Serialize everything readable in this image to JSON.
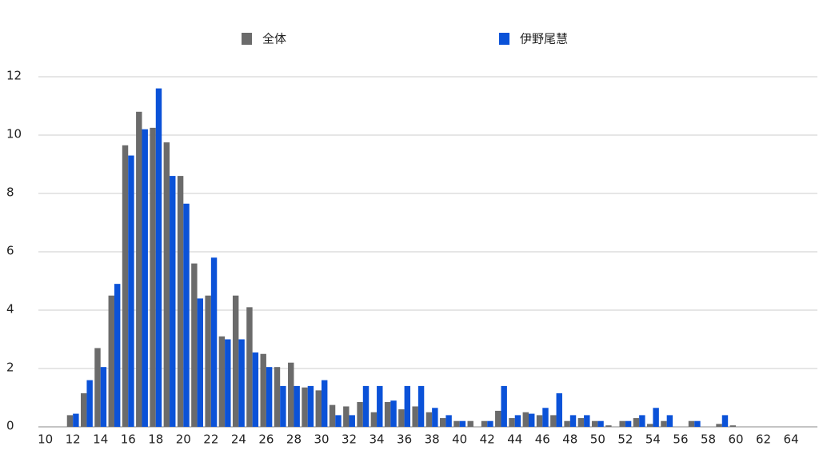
{
  "chart_data": {
    "type": "bar",
    "categories": [
      "10",
      null,
      "12",
      null,
      "14",
      null,
      "16",
      null,
      "18",
      null,
      "20",
      null,
      "22",
      null,
      "24",
      null,
      "26",
      null,
      "28",
      null,
      "30",
      null,
      "32",
      null,
      "34",
      null,
      "36",
      null,
      "38",
      null,
      "40",
      null,
      "42",
      null,
      "44",
      null,
      "46",
      null,
      "48",
      null,
      "50",
      null,
      "52",
      null,
      "54",
      null,
      "56",
      null,
      "58",
      null,
      "60",
      null,
      "62",
      null,
      "64",
      null
    ],
    "series": [
      {
        "name": "全体",
        "color": "#6b6b6b",
        "values": [
          0,
          0,
          0.4,
          1.15,
          2.7,
          4.5,
          9.65,
          10.8,
          10.25,
          9.75,
          8.6,
          5.6,
          4.5,
          3.1,
          4.5,
          4.1,
          2.5,
          2.05,
          2.2,
          1.35,
          1.25,
          0.75,
          0.7,
          0.85,
          0.5,
          0.85,
          0.6,
          0.7,
          0.5,
          0.3,
          0.2,
          0.2,
          0.2,
          0.55,
          0.3,
          0.5,
          0.4,
          0.4,
          0.2,
          0.3,
          0.2,
          0.05,
          0.2,
          0.3,
          0.1,
          0.2,
          0,
          0.2,
          0,
          0.1,
          0.05,
          0,
          0,
          0,
          0,
          0
        ]
      },
      {
        "name": "伊野尾慧",
        "color": "#0b52d8",
        "values": [
          0,
          0,
          0.45,
          1.6,
          2.05,
          4.9,
          9.3,
          10.2,
          11.6,
          8.6,
          7.65,
          4.4,
          5.8,
          3.0,
          3.0,
          2.55,
          2.05,
          1.4,
          1.4,
          1.4,
          1.6,
          0.4,
          0.4,
          1.4,
          1.4,
          0.9,
          1.4,
          1.4,
          0.65,
          0.4,
          0.2,
          0,
          0.2,
          1.4,
          0.4,
          0.45,
          0.65,
          1.15,
          0.4,
          0.4,
          0.2,
          0,
          0.2,
          0.4,
          0.65,
          0.4,
          0,
          0.2,
          0,
          0.4,
          0,
          0,
          0,
          0,
          0,
          0
        ]
      }
    ],
    "ylim": [
      0,
      12
    ],
    "yticks": [
      0,
      2,
      4,
      6,
      8,
      10,
      12
    ],
    "grid": true
  }
}
